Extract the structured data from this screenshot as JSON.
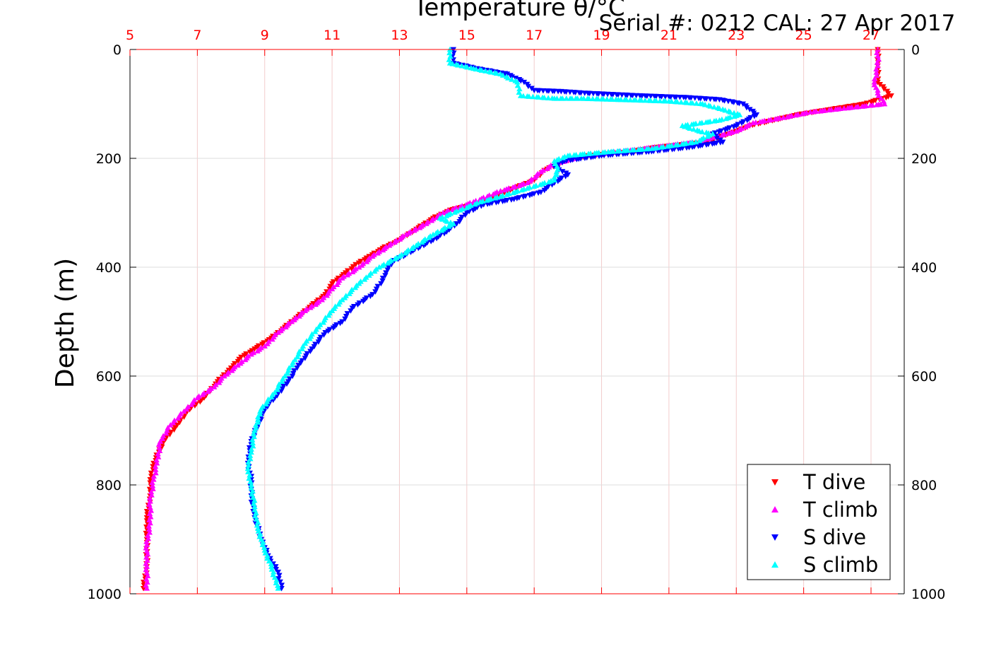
{
  "header": {
    "serial_text": "Serial #: 0212  CAL: 27 Apr 2017"
  },
  "colors": {
    "top_axis": "#ff0000",
    "t_dive": "#ff0000",
    "t_climb": "#ff00ff",
    "s_dive": "#0000ff",
    "s_climb": "#00ffff",
    "grid": "#dddddd"
  },
  "chart_data": {
    "type": "scatter",
    "title": "Temperature θ/°C",
    "xlabel": "Temperature θ/°C",
    "ylabel": "Depth (m)",
    "xlim": [
      5,
      28
    ],
    "ylim": [
      1000,
      0
    ],
    "x_ticks": [
      5,
      7,
      9,
      11,
      13,
      15,
      17,
      19,
      21,
      23,
      25,
      27
    ],
    "y_ticks": [
      0,
      200,
      400,
      600,
      800,
      1000
    ],
    "grid": true,
    "legend_position": "bottom-right",
    "series": [
      {
        "name": "T dive",
        "marker": "triangle-down",
        "color": "#ff0000",
        "points": [
          [
            27.2,
            0
          ],
          [
            27.2,
            30
          ],
          [
            27.2,
            60
          ],
          [
            27.6,
            85
          ],
          [
            26.8,
            100
          ],
          [
            25.8,
            110
          ],
          [
            24.8,
            120
          ],
          [
            23.4,
            140
          ],
          [
            23.0,
            150
          ],
          [
            22.1,
            170
          ],
          [
            20.6,
            180
          ],
          [
            19.8,
            188
          ],
          [
            18.6,
            195
          ],
          [
            17.9,
            205
          ],
          [
            17.3,
            222
          ],
          [
            17.0,
            240
          ],
          [
            16.2,
            260
          ],
          [
            15.5,
            280
          ],
          [
            14.5,
            295
          ],
          [
            14.0,
            310
          ],
          [
            13.5,
            330
          ],
          [
            13.0,
            350
          ],
          [
            12.5,
            365
          ],
          [
            12.1,
            380
          ],
          [
            11.7,
            395
          ],
          [
            11.4,
            410
          ],
          [
            11.0,
            430
          ],
          [
            10.8,
            450
          ],
          [
            10.4,
            470
          ],
          [
            10.0,
            490
          ],
          [
            9.6,
            510
          ],
          [
            9.2,
            530
          ],
          [
            8.7,
            550
          ],
          [
            8.3,
            565
          ],
          [
            8.0,
            585
          ],
          [
            7.6,
            610
          ],
          [
            7.2,
            640
          ],
          [
            6.7,
            665
          ],
          [
            6.4,
            690
          ],
          [
            6.0,
            720
          ],
          [
            5.7,
            760
          ],
          [
            5.6,
            790
          ],
          [
            5.6,
            820
          ],
          [
            5.5,
            860
          ],
          [
            5.5,
            900
          ],
          [
            5.5,
            950
          ],
          [
            5.4,
            990
          ]
        ]
      },
      {
        "name": "T climb",
        "marker": "triangle-up",
        "color": "#ff00ff",
        "points": [
          [
            27.2,
            0
          ],
          [
            27.2,
            30
          ],
          [
            27.1,
            60
          ],
          [
            27.2,
            80
          ],
          [
            27.4,
            100
          ],
          [
            26.2,
            108
          ],
          [
            25.2,
            115
          ],
          [
            24.4,
            125
          ],
          [
            23.5,
            135
          ],
          [
            23.0,
            150
          ],
          [
            21.8,
            170
          ],
          [
            20.5,
            180
          ],
          [
            19.5,
            188
          ],
          [
            18.5,
            195
          ],
          [
            17.6,
            210
          ],
          [
            17.2,
            225
          ],
          [
            16.8,
            245
          ],
          [
            16.0,
            260
          ],
          [
            15.2,
            280
          ],
          [
            14.3,
            300
          ],
          [
            13.8,
            320
          ],
          [
            13.2,
            340
          ],
          [
            12.7,
            360
          ],
          [
            12.2,
            380
          ],
          [
            11.8,
            400
          ],
          [
            11.3,
            420
          ],
          [
            11.0,
            440
          ],
          [
            10.7,
            460
          ],
          [
            10.2,
            480
          ],
          [
            9.8,
            500
          ],
          [
            9.4,
            520
          ],
          [
            9.0,
            545
          ],
          [
            8.6,
            560
          ],
          [
            8.2,
            580
          ],
          [
            7.8,
            600
          ],
          [
            7.5,
            620
          ],
          [
            7.0,
            640
          ],
          [
            6.6,
            665
          ],
          [
            6.2,
            690
          ],
          [
            5.9,
            720
          ],
          [
            5.8,
            760
          ],
          [
            5.7,
            790
          ],
          [
            5.6,
            830
          ],
          [
            5.6,
            870
          ],
          [
            5.5,
            910
          ],
          [
            5.5,
            950
          ],
          [
            5.5,
            990
          ]
        ]
      },
      {
        "name": "S dive",
        "marker": "triangle-down",
        "color": "#0000ff",
        "points": [
          [
            14.6,
            0
          ],
          [
            14.6,
            25
          ],
          [
            15.3,
            35
          ],
          [
            16.2,
            45
          ],
          [
            16.7,
            60
          ],
          [
            17.0,
            75
          ],
          [
            17.8,
            77
          ],
          [
            18.5,
            80
          ],
          [
            20.2,
            85
          ],
          [
            21.5,
            88
          ],
          [
            22.5,
            92
          ],
          [
            23.2,
            100
          ],
          [
            23.6,
            120
          ],
          [
            23.0,
            140
          ],
          [
            22.3,
            155
          ],
          [
            22.6,
            170
          ],
          [
            21.6,
            180
          ],
          [
            20.4,
            188
          ],
          [
            19.0,
            195
          ],
          [
            17.9,
            205
          ],
          [
            17.6,
            215
          ],
          [
            18.0,
            230
          ],
          [
            17.6,
            245
          ],
          [
            17.2,
            262
          ],
          [
            16.4,
            275
          ],
          [
            15.5,
            285
          ],
          [
            15.0,
            300
          ],
          [
            14.7,
            320
          ],
          [
            14.4,
            335
          ],
          [
            14.0,
            350
          ],
          [
            13.4,
            370
          ],
          [
            12.8,
            390
          ],
          [
            12.6,
            410
          ],
          [
            12.5,
            425
          ],
          [
            12.2,
            450
          ],
          [
            11.6,
            475
          ],
          [
            11.3,
            500
          ],
          [
            10.8,
            520
          ],
          [
            10.4,
            550
          ],
          [
            10.0,
            580
          ],
          [
            9.7,
            610
          ],
          [
            9.3,
            640
          ],
          [
            9.0,
            660
          ],
          [
            8.8,
            690
          ],
          [
            8.6,
            720
          ],
          [
            8.5,
            760
          ],
          [
            8.6,
            790
          ],
          [
            8.6,
            820
          ],
          [
            8.7,
            860
          ],
          [
            8.9,
            900
          ],
          [
            9.1,
            930
          ],
          [
            9.4,
            960
          ],
          [
            9.5,
            990
          ]
        ]
      },
      {
        "name": "S climb",
        "marker": "triangle-up",
        "color": "#00ffff",
        "points": [
          [
            14.5,
            0
          ],
          [
            14.5,
            25
          ],
          [
            15.2,
            35
          ],
          [
            16.0,
            45
          ],
          [
            16.5,
            60
          ],
          [
            16.6,
            85
          ],
          [
            17.6,
            90
          ],
          [
            18.4,
            90
          ],
          [
            19.5,
            92
          ],
          [
            21.0,
            95
          ],
          [
            22.0,
            100
          ],
          [
            22.6,
            110
          ],
          [
            23.1,
            120
          ],
          [
            22.5,
            130
          ],
          [
            21.4,
            140
          ],
          [
            21.9,
            150
          ],
          [
            22.3,
            155
          ],
          [
            21.8,
            170
          ],
          [
            20.5,
            182
          ],
          [
            19.2,
            188
          ],
          [
            18.0,
            195
          ],
          [
            17.6,
            205
          ],
          [
            17.7,
            220
          ],
          [
            17.6,
            240
          ],
          [
            16.8,
            255
          ],
          [
            16.0,
            270
          ],
          [
            15.4,
            280
          ],
          [
            14.8,
            295
          ],
          [
            14.2,
            310
          ],
          [
            14.6,
            320
          ],
          [
            14.0,
            340
          ],
          [
            13.5,
            360
          ],
          [
            13.0,
            380
          ],
          [
            12.4,
            400
          ],
          [
            12.1,
            415
          ],
          [
            11.8,
            430
          ],
          [
            11.3,
            460
          ],
          [
            11.0,
            480
          ],
          [
            10.6,
            510
          ],
          [
            10.2,
            540
          ],
          [
            9.9,
            570
          ],
          [
            9.6,
            600
          ],
          [
            9.3,
            630
          ],
          [
            8.9,
            660
          ],
          [
            8.7,
            700
          ],
          [
            8.6,
            740
          ],
          [
            8.5,
            770
          ],
          [
            8.6,
            800
          ],
          [
            8.7,
            840
          ],
          [
            8.8,
            880
          ],
          [
            9.0,
            920
          ],
          [
            9.2,
            950
          ],
          [
            9.4,
            990
          ]
        ]
      }
    ]
  }
}
